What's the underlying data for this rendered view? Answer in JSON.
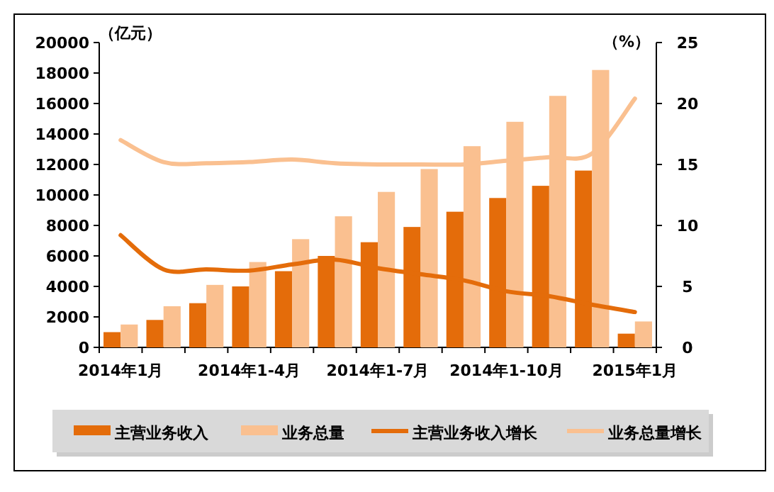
{
  "chart_data": {
    "type": "bar",
    "ylabel": "（亿元）",
    "y2label": "（%）",
    "categories": [
      "2014年1月",
      null,
      null,
      "2014年1-4月",
      null,
      null,
      "2014年1-7月",
      null,
      null,
      "2014年1-10月",
      null,
      null,
      "2015年1月"
    ],
    "ylim": [
      0,
      20000
    ],
    "yticks": [
      0,
      2000,
      4000,
      6000,
      8000,
      10000,
      12000,
      14000,
      16000,
      18000,
      20000
    ],
    "y2lim": [
      0,
      25
    ],
    "y2ticks": [
      0,
      5,
      10,
      15,
      20,
      25
    ],
    "legend": "bottom",
    "grid": false,
    "series": [
      {
        "name": "主营业务收入",
        "color": "#e46c0a",
        "values": [
          1000,
          1800,
          2900,
          4000,
          5000,
          6000,
          6900,
          7900,
          8900,
          9800,
          10600,
          11600,
          900
        ]
      },
      {
        "name": "业务总量",
        "color": "#fac090",
        "values": [
          1500,
          2700,
          4100,
          5600,
          7100,
          8600,
          10200,
          11700,
          13200,
          14800,
          16500,
          18200,
          1700
        ]
      },
      {
        "name": "主营业务收入增长",
        "type": "line",
        "axis": "y2",
        "color": "#e46c0a",
        "values": [
          9.2,
          6.4,
          6.4,
          6.3,
          6.8,
          7.2,
          6.5,
          6.0,
          5.5,
          4.6,
          4.2,
          3.5,
          2.9
        ]
      },
      {
        "name": "业务总量增长",
        "type": "line",
        "axis": "y2",
        "color": "#fac090",
        "values": [
          17.0,
          15.2,
          15.1,
          15.2,
          15.4,
          15.1,
          15.0,
          15.0,
          15.0,
          15.3,
          15.6,
          15.9,
          20.4
        ]
      }
    ]
  }
}
